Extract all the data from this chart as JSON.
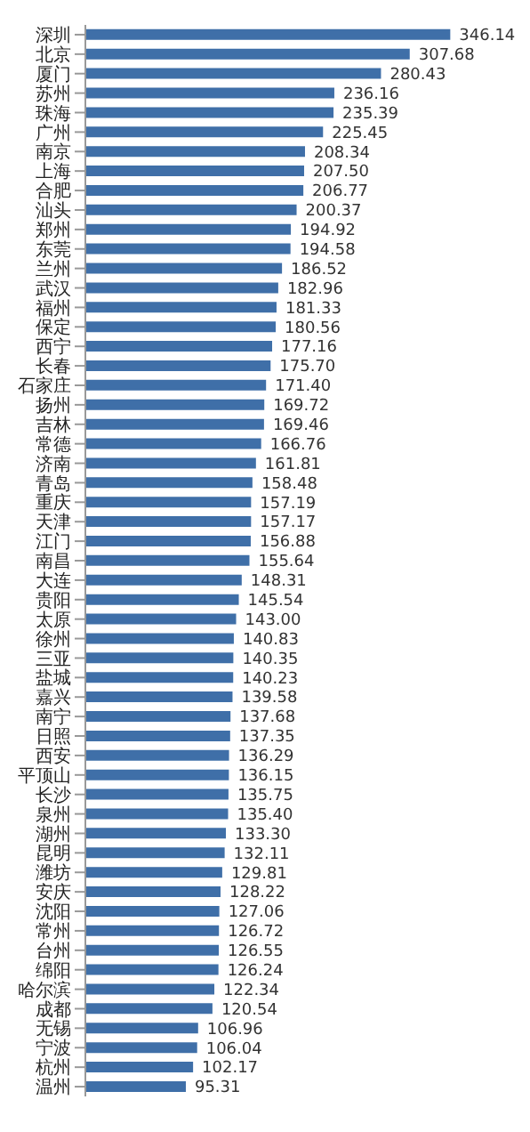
{
  "chart_data": {
    "type": "bar",
    "orientation": "horizontal",
    "grid": false,
    "categories": [
      "深圳",
      "北京",
      "厦门",
      "苏州",
      "珠海",
      "广州",
      "南京",
      "上海",
      "合肥",
      "汕头",
      "郑州",
      "东莞",
      "兰州",
      "武汉",
      "福州",
      "保定",
      "西宁",
      "长春",
      "石家庄",
      "扬州",
      "吉林",
      "常德",
      "济南",
      "青岛",
      "重庆",
      "天津",
      "江门",
      "南昌",
      "大连",
      "贵阳",
      "太原",
      "徐州",
      "三亚",
      "盐城",
      "嘉兴",
      "南宁",
      "日照",
      "西安",
      "平顶山",
      "长沙",
      "泉州",
      "湖州",
      "昆明",
      "潍坊",
      "安庆",
      "沈阳",
      "常州",
      "台州",
      "绵阳",
      "哈尔滨",
      "成都",
      "无锡",
      "宁波",
      "杭州",
      "温州"
    ],
    "series": [
      {
        "color": "#3f6fa8",
        "values": [
          346.14,
          307.68,
          280.43,
          236.16,
          235.39,
          225.45,
          208.34,
          207.5,
          206.77,
          200.37,
          194.92,
          194.58,
          186.52,
          182.96,
          181.33,
          180.56,
          177.16,
          175.7,
          171.4,
          169.72,
          169.46,
          166.76,
          161.81,
          158.48,
          157.19,
          157.17,
          156.88,
          155.64,
          148.31,
          145.54,
          143.0,
          140.83,
          140.35,
          140.23,
          139.58,
          137.68,
          137.35,
          136.29,
          136.15,
          135.75,
          135.4,
          133.3,
          132.11,
          129.81,
          128.22,
          127.06,
          126.72,
          126.55,
          126.24,
          122.34,
          120.54,
          106.96,
          106.04,
          102.17,
          95.31
        ],
        "value_labels": [
          "346.14",
          "307.68",
          "280.43",
          "236.16",
          "235.39",
          "225.45",
          "208.34",
          "207.50",
          "206.77",
          "200.37",
          "194.92",
          "194.58",
          "186.52",
          "182.96",
          "181.33",
          "180.56",
          "177.16",
          "175.70",
          "171.40",
          "169.72",
          "169.46",
          "166.76",
          "161.81",
          "158.48",
          "157.19",
          "157.17",
          "156.88",
          "155.64",
          "148.31",
          "145.54",
          "143.00",
          "140.83",
          "140.35",
          "140.23",
          "139.58",
          "137.68",
          "137.35",
          "136.29",
          "136.15",
          "135.75",
          "135.40",
          "133.30",
          "132.11",
          "129.81",
          "128.22",
          "127.06",
          "126.72",
          "126.55",
          "126.24",
          "122.34",
          "120.54",
          "106.96",
          "106.04",
          "102.17",
          "95.31"
        ]
      }
    ]
  }
}
